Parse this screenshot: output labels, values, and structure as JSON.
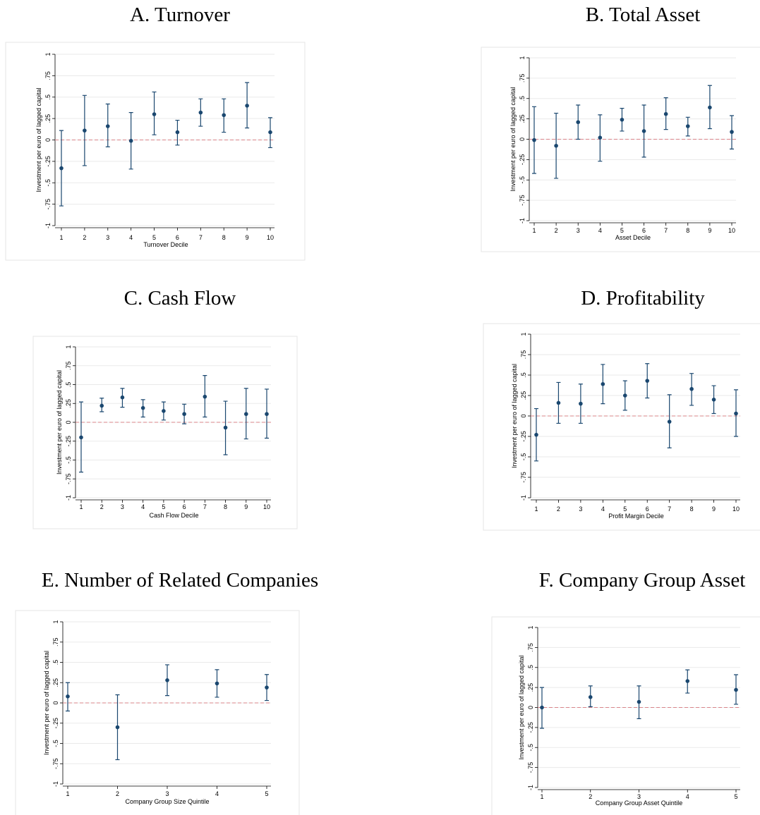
{
  "chart_data": [
    {
      "type": "errorbar",
      "title": "A. Turnover",
      "xlabel": "Turnover Decile",
      "ylabel": "Investment per euro of lagged capital",
      "categories": [
        "1",
        "2",
        "3",
        "4",
        "5",
        "6",
        "7",
        "8",
        "9",
        "10"
      ],
      "values": [
        -0.33,
        0.11,
        0.16,
        -0.01,
        0.3,
        0.09,
        0.32,
        0.29,
        0.4,
        0.09
      ],
      "ci_low": [
        -0.77,
        -0.3,
        -0.08,
        -0.34,
        0.06,
        -0.06,
        0.16,
        0.09,
        0.14,
        -0.09
      ],
      "ci_high": [
        0.11,
        0.52,
        0.42,
        0.32,
        0.56,
        0.23,
        0.48,
        0.48,
        0.67,
        0.26
      ],
      "ylim": [
        -1,
        1
      ],
      "yticks": [
        -1,
        {
          "value": -0.75,
          "label": "-.75"
        },
        {
          "value": -0.5,
          "label": "-.5"
        },
        {
          "value": -0.25,
          "label": "-.25"
        },
        0,
        {
          "value": 0.25,
          "label": ".25"
        },
        {
          "value": 0.5,
          "label": ".5"
        },
        {
          "value": 0.75,
          "label": ".75"
        },
        1
      ],
      "refline": 0,
      "color": "#1a476f",
      "refline_color": "#d9848a",
      "grid": true
    },
    {
      "type": "errorbar",
      "title": "B. Total Asset",
      "xlabel": "Asset Decile",
      "ylabel": "Investment per euro of lagged capital",
      "categories": [
        "1",
        "2",
        "3",
        "4",
        "5",
        "6",
        "7",
        "8",
        "9",
        "10"
      ],
      "values": [
        -0.01,
        -0.08,
        0.21,
        0.02,
        0.24,
        0.1,
        0.31,
        0.16,
        0.39,
        0.09
      ],
      "ci_low": [
        -0.42,
        -0.48,
        0.0,
        -0.27,
        0.1,
        -0.22,
        0.12,
        0.04,
        0.13,
        -0.12
      ],
      "ci_high": [
        0.4,
        0.32,
        0.42,
        0.3,
        0.38,
        0.42,
        0.51,
        0.27,
        0.66,
        0.29
      ],
      "ylim": [
        -1,
        1
      ],
      "yticks": [
        -1,
        {
          "value": -0.75,
          "label": "-.75"
        },
        {
          "value": -0.5,
          "label": "-.5"
        },
        {
          "value": -0.25,
          "label": "-.25"
        },
        0,
        {
          "value": 0.25,
          "label": ".25"
        },
        {
          "value": 0.5,
          "label": ".5"
        },
        {
          "value": 0.75,
          "label": ".75"
        },
        1
      ],
      "refline": 0,
      "color": "#1a476f",
      "refline_color": "#d9848a",
      "grid": true
    },
    {
      "type": "errorbar",
      "title": "C. Cash Flow",
      "xlabel": "Cash Flow Decile",
      "ylabel": "Investment per euro of lagged capital",
      "categories": [
        "1",
        "2",
        "3",
        "4",
        "5",
        "6",
        "7",
        "8",
        "9",
        "10"
      ],
      "values": [
        -0.2,
        0.22,
        0.33,
        0.19,
        0.15,
        0.11,
        0.34,
        -0.07,
        0.11,
        0.11
      ],
      "ci_low": [
        -0.66,
        0.14,
        0.2,
        0.07,
        0.03,
        -0.02,
        0.07,
        -0.43,
        -0.22,
        -0.21
      ],
      "ci_high": [
        0.27,
        0.32,
        0.45,
        0.3,
        0.27,
        0.24,
        0.62,
        0.28,
        0.45,
        0.44
      ],
      "ylim": [
        -1,
        1
      ],
      "yticks": [
        -1,
        {
          "value": -0.75,
          "label": "-.75"
        },
        {
          "value": -0.5,
          "label": "-.5"
        },
        {
          "value": -0.25,
          "label": "-.25"
        },
        0,
        {
          "value": 0.25,
          "label": ".25"
        },
        {
          "value": 0.5,
          "label": ".5"
        },
        {
          "value": 0.75,
          "label": ".75"
        },
        1
      ],
      "refline": 0,
      "color": "#1a476f",
      "refline_color": "#d9848a",
      "grid": true
    },
    {
      "type": "errorbar",
      "title": "D. Profitability",
      "xlabel": "Profit Margin Decile",
      "ylabel": "Investment per euro of lagged capital",
      "categories": [
        "1",
        "2",
        "3",
        "4",
        "5",
        "6",
        "7",
        "8",
        "9",
        "10"
      ],
      "values": [
        -0.23,
        0.16,
        0.15,
        0.39,
        0.25,
        0.43,
        -0.07,
        0.33,
        0.2,
        0.03
      ],
      "ci_low": [
        -0.55,
        -0.09,
        -0.09,
        0.15,
        0.07,
        0.22,
        -0.39,
        0.13,
        0.03,
        -0.25
      ],
      "ci_high": [
        0.09,
        0.41,
        0.39,
        0.63,
        0.43,
        0.64,
        0.26,
        0.52,
        0.37,
        0.32
      ],
      "ylim": [
        -1,
        1
      ],
      "yticks": [
        -1,
        {
          "value": -0.75,
          "label": "-.75"
        },
        {
          "value": -0.5,
          "label": "-.5"
        },
        {
          "value": -0.25,
          "label": "-.25"
        },
        0,
        {
          "value": 0.25,
          "label": ".25"
        },
        {
          "value": 0.5,
          "label": ".5"
        },
        {
          "value": 0.75,
          "label": ".75"
        },
        1
      ],
      "refline": 0,
      "color": "#1a476f",
      "refline_color": "#d9848a",
      "grid": true
    },
    {
      "type": "errorbar",
      "title": "E. Number of Related Companies",
      "xlabel": "Company Group Size Quintile",
      "ylabel": "Investment per euro of lagged capital",
      "categories": [
        "1",
        "2",
        "3",
        "4",
        "5"
      ],
      "values": [
        0.08,
        -0.3,
        0.28,
        0.24,
        0.19
      ],
      "ci_low": [
        -0.1,
        -0.7,
        0.09,
        0.07,
        0.03
      ],
      "ci_high": [
        0.25,
        0.1,
        0.47,
        0.41,
        0.35
      ],
      "ylim": [
        -1,
        1
      ],
      "yticks": [
        -1,
        {
          "value": -0.75,
          "label": "-.75"
        },
        {
          "value": -0.5,
          "label": "-.5"
        },
        {
          "value": -0.25,
          "label": "-.25"
        },
        0,
        {
          "value": 0.25,
          "label": ".25"
        },
        {
          "value": 0.5,
          "label": ".5"
        },
        {
          "value": 0.75,
          "label": ".75"
        },
        1
      ],
      "refline": 0,
      "color": "#1a476f",
      "refline_color": "#d9848a",
      "grid": true
    },
    {
      "type": "errorbar",
      "title": "F. Company Group Asset",
      "xlabel": "Company Group Asset Quintile",
      "ylabel": "Investment per euro of lagged capital",
      "categories": [
        "1",
        "2",
        "3",
        "4",
        "5"
      ],
      "values": [
        0.0,
        0.13,
        0.07,
        0.33,
        0.22
      ],
      "ci_low": [
        -0.26,
        0.01,
        -0.14,
        0.18,
        0.04
      ],
      "ci_high": [
        0.25,
        0.27,
        0.27,
        0.47,
        0.41
      ],
      "ylim": [
        -1,
        1
      ],
      "yticks": [
        -1,
        {
          "value": -0.75,
          "label": "-.75"
        },
        {
          "value": -0.5,
          "label": "-.5"
        },
        {
          "value": -0.25,
          "label": "-.25"
        },
        0,
        {
          "value": 0.25,
          "label": ".25"
        },
        {
          "value": 0.5,
          "label": ".5"
        },
        {
          "value": 0.75,
          "label": ".75"
        },
        1
      ],
      "refline": 0,
      "color": "#1a476f",
      "refline_color": "#d9848a",
      "grid": true
    }
  ]
}
